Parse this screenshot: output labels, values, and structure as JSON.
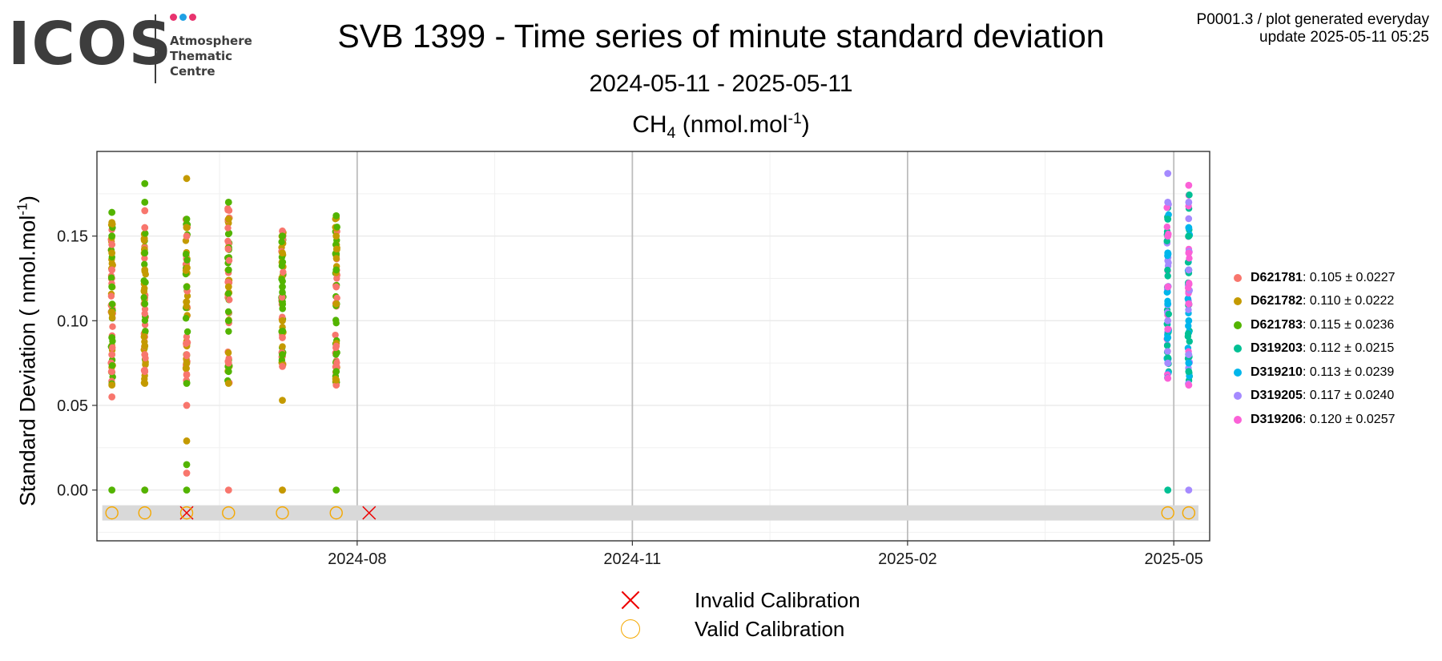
{
  "logo": {
    "word": "ICOS",
    "lines": [
      "Atmosphere",
      "Thematic",
      "Centre"
    ],
    "dot_colors": [
      "#e8336e",
      "#1fa0e4",
      "#e8336e"
    ]
  },
  "header": {
    "meta_line1": "P0001.3 / plot generated everyday",
    "meta_line2": "update  2025-05-11 05:25",
    "title": "SVB 1399 - Time series of minute standard deviation",
    "subtitle": "2024-05-11 - 2025-05-11",
    "panel_gas": "CH",
    "panel_gas_sub": "4",
    "panel_unit": " (nmol.mol",
    "panel_unit_sup": "-1",
    "panel_unit_end": ")",
    "ylabel_main": "Standard Deviation ( nmol.mol",
    "ylabel_sup": "-1",
    "ylabel_end": ")"
  },
  "calibration_legend": {
    "invalid": "Invalid Calibration",
    "valid": "Valid Calibration",
    "invalid_color": "#ee0000",
    "valid_color": "#f5a800"
  },
  "chart_data": {
    "type": "scatter",
    "xlabel": "",
    "ylabel": "Standard Deviation ( nmol.mol-1)",
    "x_range": [
      "2024-05-06",
      "2025-05-13"
    ],
    "ylim": [
      -0.03,
      0.2
    ],
    "x_ticks": [
      "2024-08",
      "2024-11",
      "2025-02",
      "2025-05"
    ],
    "y_ticks": [
      "0.00",
      "0.05",
      "0.10",
      "0.15"
    ],
    "grid": true,
    "legend_position": "right",
    "series": [
      {
        "name": "D621781",
        "stat": ": 0.105 ± 0.0227",
        "color": "#f8766d",
        "points": [
          [
            "2024-05-11",
            0.055
          ],
          [
            "2024-05-11",
            0.08
          ],
          [
            "2024-05-11",
            0.13
          ],
          [
            "2024-05-11",
            0.145
          ],
          [
            "2024-05-22",
            0.165
          ],
          [
            "2024-05-22",
            0.155
          ],
          [
            "2024-05-22",
            0.07
          ],
          [
            "2024-05-22",
            0.08
          ],
          [
            "2024-05-22",
            0.0
          ],
          [
            "2024-06-05",
            0.05
          ],
          [
            "2024-06-05",
            0.01
          ],
          [
            "2024-06-05",
            0.068
          ],
          [
            "2024-06-05",
            0.08
          ],
          [
            "2024-06-05",
            0.15
          ],
          [
            "2024-06-19",
            0.0
          ],
          [
            "2024-06-19",
            0.075
          ],
          [
            "2024-06-19",
            0.1
          ],
          [
            "2024-07-07",
            0.153
          ],
          [
            "2024-07-07",
            0.073
          ],
          [
            "2024-07-07",
            0.09
          ],
          [
            "2024-07-07",
            0.0
          ],
          [
            "2024-07-25",
            0.062
          ],
          [
            "2024-07-25",
            0.085
          ],
          [
            "2024-07-25",
            0.12
          ]
        ]
      },
      {
        "name": "D621782",
        "stat": ": 0.110 ± 0.0222",
        "color": "#c49a00",
        "points": [
          [
            "2024-05-11",
            0.158
          ],
          [
            "2024-05-11",
            0.062
          ],
          [
            "2024-05-11",
            0.14
          ],
          [
            "2024-05-11",
            0.105
          ],
          [
            "2024-05-22",
            0.063
          ],
          [
            "2024-05-22",
            0.13
          ],
          [
            "2024-05-22",
            0.085
          ],
          [
            "2024-06-05",
            0.184
          ],
          [
            "2024-06-05",
            0.029
          ],
          [
            "2024-06-05",
            0.155
          ],
          [
            "2024-06-05",
            0.075
          ],
          [
            "2024-06-19",
            0.063
          ],
          [
            "2024-06-19",
            0.16
          ],
          [
            "2024-06-19",
            0.12
          ],
          [
            "2024-07-07",
            0.053
          ],
          [
            "2024-07-07",
            0.0
          ],
          [
            "2024-07-07",
            0.14
          ],
          [
            "2024-07-07",
            0.1
          ],
          [
            "2024-07-25",
            0.065
          ],
          [
            "2024-07-25",
            0.15
          ],
          [
            "2024-07-25",
            0.11
          ]
        ]
      },
      {
        "name": "D621783",
        "stat": ": 0.115 ± 0.0236",
        "color": "#53b400",
        "points": [
          [
            "2024-05-11",
            0.164
          ],
          [
            "2024-05-11",
            0.0
          ],
          [
            "2024-05-11",
            0.12
          ],
          [
            "2024-05-11",
            0.09
          ],
          [
            "2024-05-11",
            0.15
          ],
          [
            "2024-05-22",
            0.181
          ],
          [
            "2024-05-22",
            0.17
          ],
          [
            "2024-05-22",
            0.0
          ],
          [
            "2024-05-22",
            0.11
          ],
          [
            "2024-05-22",
            0.14
          ],
          [
            "2024-06-05",
            0.015
          ],
          [
            "2024-06-05",
            0.0
          ],
          [
            "2024-06-05",
            0.063
          ],
          [
            "2024-06-05",
            0.16
          ],
          [
            "2024-06-05",
            0.12
          ],
          [
            "2024-06-19",
            0.17
          ],
          [
            "2024-06-19",
            0.07
          ],
          [
            "2024-06-19",
            0.13
          ],
          [
            "2024-06-19",
            0.1
          ],
          [
            "2024-07-07",
            0.15
          ],
          [
            "2024-07-07",
            0.08
          ],
          [
            "2024-07-07",
            0.12
          ],
          [
            "2024-07-25",
            0.162
          ],
          [
            "2024-07-25",
            0.0
          ],
          [
            "2024-07-25",
            0.07
          ],
          [
            "2024-07-25",
            0.13
          ]
        ]
      },
      {
        "name": "D319203",
        "stat": ": 0.112 ± 0.0215",
        "color": "#00c094",
        "points": [
          [
            "2025-04-29",
            0.0
          ],
          [
            "2025-04-29",
            0.16
          ],
          [
            "2025-04-29",
            0.078
          ],
          [
            "2025-04-29",
            0.12
          ],
          [
            "2025-05-06",
            0.15
          ],
          [
            "2025-05-06",
            0.07
          ],
          [
            "2025-05-06",
            0.11
          ]
        ]
      },
      {
        "name": "D319210",
        "stat": ": 0.113 ± 0.0239",
        "color": "#00b6eb",
        "points": [
          [
            "2025-04-29",
            0.14
          ],
          [
            "2025-04-29",
            0.09
          ],
          [
            "2025-04-29",
            0.11
          ],
          [
            "2025-05-06",
            0.155
          ],
          [
            "2025-05-06",
            0.1
          ],
          [
            "2025-05-06",
            0.13
          ],
          [
            "2025-05-06",
            0.075
          ]
        ]
      },
      {
        "name": "D319205",
        "stat": ": 0.117 ± 0.0240",
        "color": "#a58aff",
        "points": [
          [
            "2025-04-29",
            0.187
          ],
          [
            "2025-04-29",
            0.17
          ],
          [
            "2025-04-29",
            0.075
          ],
          [
            "2025-04-29",
            0.1
          ],
          [
            "2025-05-06",
            0.0
          ],
          [
            "2025-05-06",
            0.17
          ],
          [
            "2025-05-06",
            0.08
          ],
          [
            "2025-05-06",
            0.13
          ]
        ]
      },
      {
        "name": "D319206",
        "stat": ": 0.120 ± 0.0257",
        "color": "#fb61d7",
        "points": [
          [
            "2025-04-29",
            0.066
          ],
          [
            "2025-04-29",
            0.15
          ],
          [
            "2025-04-29",
            0.12
          ],
          [
            "2025-04-29",
            0.095
          ],
          [
            "2025-05-06",
            0.18
          ],
          [
            "2025-05-06",
            0.062
          ],
          [
            "2025-05-06",
            0.11
          ],
          [
            "2025-05-06",
            0.14
          ]
        ]
      }
    ],
    "point_columns": [
      {
        "date": "2024-05-11",
        "min": 0.062,
        "max": 0.158,
        "colors": [
          "#f8766d",
          "#c49a00",
          "#53b400"
        ]
      },
      {
        "date": "2024-05-22",
        "min": 0.063,
        "max": 0.152,
        "colors": [
          "#f8766d",
          "#c49a00",
          "#53b400"
        ]
      },
      {
        "date": "2024-06-05",
        "min": 0.063,
        "max": 0.16,
        "colors": [
          "#f8766d",
          "#c49a00",
          "#53b400"
        ]
      },
      {
        "date": "2024-06-19",
        "min": 0.063,
        "max": 0.168,
        "colors": [
          "#f8766d",
          "#c49a00",
          "#53b400"
        ]
      },
      {
        "date": "2024-07-07",
        "min": 0.073,
        "max": 0.153,
        "colors": [
          "#f8766d",
          "#c49a00",
          "#53b400"
        ]
      },
      {
        "date": "2024-07-25",
        "min": 0.062,
        "max": 0.162,
        "colors": [
          "#f8766d",
          "#c49a00",
          "#53b400"
        ]
      },
      {
        "date": "2025-04-29",
        "min": 0.066,
        "max": 0.17,
        "colors": [
          "#00c094",
          "#00b6eb",
          "#a58aff",
          "#fb61d7"
        ]
      },
      {
        "date": "2025-05-06",
        "min": 0.062,
        "max": 0.175,
        "colors": [
          "#00c094",
          "#00b6eb",
          "#a58aff",
          "#fb61d7"
        ]
      }
    ],
    "calibrations": [
      {
        "date": "2024-05-11",
        "status": "valid"
      },
      {
        "date": "2024-05-22",
        "status": "valid"
      },
      {
        "date": "2024-06-05",
        "status": "invalid"
      },
      {
        "date": "2024-06-05",
        "status": "valid"
      },
      {
        "date": "2024-06-19",
        "status": "valid"
      },
      {
        "date": "2024-07-07",
        "status": "valid"
      },
      {
        "date": "2024-07-25",
        "status": "valid"
      },
      {
        "date": "2024-08-05",
        "status": "invalid"
      },
      {
        "date": "2025-04-29",
        "status": "valid"
      },
      {
        "date": "2025-05-06",
        "status": "valid"
      }
    ],
    "calibration_band": {
      "y_min": -0.018,
      "y_max": -0.009,
      "color": "#d9d9d9"
    }
  }
}
